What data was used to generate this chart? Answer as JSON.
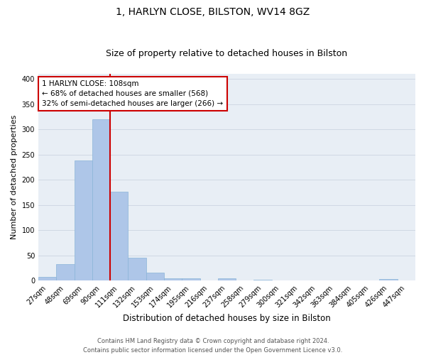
{
  "title": "1, HARLYN CLOSE, BILSTON, WV14 8GZ",
  "subtitle": "Size of property relative to detached houses in Bilston",
  "xlabel": "Distribution of detached houses by size in Bilston",
  "ylabel": "Number of detached properties",
  "categories": [
    "27sqm",
    "48sqm",
    "69sqm",
    "90sqm",
    "111sqm",
    "132sqm",
    "153sqm",
    "174sqm",
    "195sqm",
    "216sqm",
    "237sqm",
    "258sqm",
    "279sqm",
    "300sqm",
    "321sqm",
    "342sqm",
    "363sqm",
    "384sqm",
    "405sqm",
    "426sqm",
    "447sqm"
  ],
  "values": [
    8,
    33,
    238,
    320,
    176,
    45,
    16,
    5,
    4,
    0,
    4,
    0,
    2,
    0,
    0,
    0,
    0,
    0,
    0,
    3,
    0
  ],
  "bar_color": "#aec6e8",
  "bar_edge_color": "#8ab4d8",
  "vline_color": "#cc0000",
  "vline_x": 3.5,
  "annotation_line1": "1 HARLYN CLOSE: 108sqm",
  "annotation_line2": "← 68% of detached houses are smaller (568)",
  "annotation_line3": "32% of semi-detached houses are larger (266) →",
  "annotation_box_facecolor": "#ffffff",
  "annotation_box_edgecolor": "#cc0000",
  "ylim": [
    0,
    410
  ],
  "yticks": [
    0,
    50,
    100,
    150,
    200,
    250,
    300,
    350,
    400
  ],
  "footer_line1": "Contains HM Land Registry data © Crown copyright and database right 2024.",
  "footer_line2": "Contains public sector information licensed under the Open Government Licence v3.0.",
  "bg_color": "#ffffff",
  "plot_bg_color": "#e8eef5",
  "grid_color": "#d0d8e4",
  "title_fontsize": 10,
  "subtitle_fontsize": 9,
  "xlabel_fontsize": 8.5,
  "ylabel_fontsize": 8,
  "tick_fontsize": 7,
  "annotation_fontsize": 7.5,
  "footer_fontsize": 6
}
